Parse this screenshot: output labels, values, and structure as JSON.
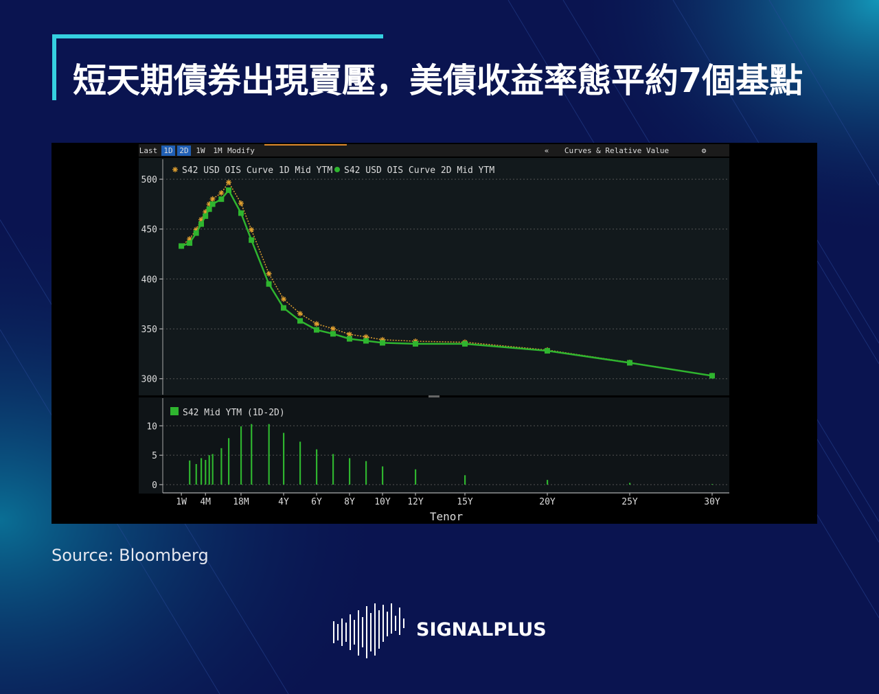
{
  "header": {
    "title": "短天期債券出現賣壓，美債收益率態平約7個基點"
  },
  "toolbar": {
    "items": [
      "Last",
      "1D",
      "2D",
      "1W",
      "1M",
      "Modify"
    ],
    "collapse": "«",
    "panel": "Curves & Relative Value"
  },
  "source": "Source: Bloomberg",
  "logo": "SIGNALPLUS",
  "chart_data": [
    {
      "type": "line",
      "x": [
        0.0192,
        0.0833,
        0.1667,
        0.25,
        0.3333,
        0.4167,
        0.5,
        0.75,
        1,
        1.5,
        2,
        3,
        4,
        5,
        6,
        7,
        8,
        9,
        10,
        12,
        15,
        20,
        25,
        30
      ],
      "xlim": [
        0,
        31
      ],
      "ylim": [
        284,
        520
      ],
      "yticks": [
        300,
        350,
        400,
        450,
        500
      ],
      "grid": true,
      "series": [
        {
          "name": "S42 USD OIS Curve 1D Mid YTM",
          "color": "#e0a030",
          "marker": "star",
          "values": [
            433,
            440.1,
            449.5,
            459.5,
            467.2,
            475,
            480.2,
            486.2,
            496.9,
            475.9,
            449.3,
            405.3,
            379.8,
            365.3,
            355,
            350.2,
            344.5,
            342,
            339.1,
            337.6,
            336.6,
            328.8,
            316.3,
            303.1
          ]
        },
        {
          "name": "S42 USD OIS Curve 2D Mid YTM",
          "color": "#2fb52f",
          "marker": "circle",
          "values": [
            433,
            436,
            446,
            455,
            463,
            470,
            475,
            480,
            489,
            466,
            439,
            395,
            371,
            358,
            349,
            345,
            340,
            338,
            336,
            335,
            335,
            328,
            316,
            303
          ]
        }
      ]
    },
    {
      "type": "bar",
      "x": [
        0.0192,
        0.0833,
        0.1667,
        0.25,
        0.3333,
        0.4167,
        0.5,
        0.75,
        1,
        1.5,
        2,
        3,
        4,
        5,
        6,
        7,
        8,
        9,
        10,
        12,
        15,
        20,
        25,
        30
      ],
      "xlim": [
        0,
        31
      ],
      "ylim": [
        -1.4,
        14.7
      ],
      "yticks": [
        0,
        5,
        10
      ],
      "grid": true,
      "xticks": [
        {
          "value": 0.0192,
          "label": "1W"
        },
        {
          "value": 0.3333,
          "label": "4M"
        },
        {
          "value": 1.5,
          "label": "18M"
        },
        {
          "value": 4,
          "label": "4Y"
        },
        {
          "value": 6,
          "label": "6Y"
        },
        {
          "value": 8,
          "label": "8Y"
        },
        {
          "value": 10,
          "label": "10Y"
        },
        {
          "value": 12,
          "label": "12Y"
        },
        {
          "value": 15,
          "label": "15Y"
        },
        {
          "value": 20,
          "label": "20Y"
        },
        {
          "value": 25,
          "label": "25Y"
        },
        {
          "value": 30,
          "label": "30Y"
        }
      ],
      "xlabel": "Tenor",
      "series": [
        {
          "name": "S42 Mid YTM (1D-2D)",
          "color": "#2fb52f",
          "values": [
            0,
            4.1,
            3.5,
            4.5,
            4.2,
            5,
            5.2,
            6.2,
            7.9,
            9.9,
            10.3,
            10.3,
            8.8,
            7.3,
            6,
            5.2,
            4.5,
            4,
            3.1,
            2.6,
            1.6,
            0.8,
            0.3,
            0.1
          ]
        }
      ]
    }
  ]
}
